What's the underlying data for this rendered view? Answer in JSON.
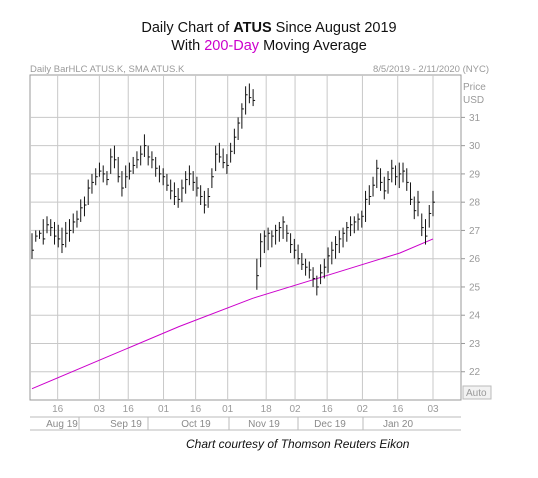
{
  "header": {
    "title_prefix": "Daily Chart of ",
    "ticker": "ATUS",
    "title_suffix": " Since August 2019",
    "subtitle_prefix": "With ",
    "subtitle_highlight": "200-Day",
    "subtitle_suffix": " Moving Average",
    "chart_spec": "Daily BarHLC ATUS.K, SMA ATUS.K",
    "date_range": "8/5/2019 - 2/11/2020 (NYC)",
    "credit": "Chart courtesy of Thomson Reuters Eikon"
  },
  "colors": {
    "sma": "#cc00cc",
    "bars": "#111111",
    "grid": "#c8c8c8",
    "axis_text": "#9a9a9a"
  },
  "chart_data": {
    "type": "line",
    "series": [
      {
        "kind": "ohlc-bars",
        "bars": [
          [
            26.0,
            26.9,
            26.3
          ],
          [
            26.6,
            27.0,
            26.8
          ],
          [
            26.7,
            27.0,
            26.9
          ],
          [
            26.5,
            27.4,
            26.7
          ],
          [
            26.9,
            27.5,
            27.2
          ],
          [
            26.8,
            27.4,
            27.1
          ],
          [
            26.5,
            27.3,
            26.8
          ],
          [
            26.4,
            27.2,
            26.7
          ],
          [
            26.2,
            27.1,
            26.5
          ],
          [
            26.4,
            27.3,
            26.9
          ],
          [
            26.6,
            27.4,
            27.0
          ],
          [
            26.9,
            27.6,
            27.3
          ],
          [
            27.1,
            27.7,
            27.4
          ],
          [
            27.3,
            28.1,
            27.8
          ],
          [
            27.5,
            28.2,
            27.9
          ],
          [
            27.9,
            28.8,
            28.5
          ],
          [
            28.3,
            29.0,
            28.7
          ],
          [
            28.6,
            29.2,
            28.9
          ],
          [
            28.9,
            29.4,
            29.1
          ],
          [
            28.7,
            29.3,
            29.0
          ],
          [
            28.6,
            29.1,
            28.8
          ],
          [
            29.0,
            29.9,
            29.6
          ],
          [
            29.2,
            30.0,
            29.5
          ],
          [
            28.7,
            29.6,
            28.9
          ],
          [
            28.2,
            29.1,
            28.5
          ],
          [
            28.5,
            29.3,
            28.9
          ],
          [
            28.8,
            29.4,
            29.1
          ],
          [
            29.0,
            29.6,
            29.3
          ],
          [
            29.2,
            29.8,
            29.5
          ],
          [
            29.3,
            30.0,
            29.7
          ],
          [
            29.6,
            30.4,
            30.0
          ],
          [
            29.3,
            30.0,
            29.6
          ],
          [
            29.2,
            29.8,
            29.5
          ],
          [
            28.9,
            29.6,
            29.2
          ],
          [
            28.7,
            29.3,
            29.0
          ],
          [
            28.6,
            29.2,
            28.9
          ],
          [
            28.4,
            29.0,
            28.6
          ],
          [
            28.1,
            28.8,
            28.4
          ],
          [
            27.9,
            28.7,
            28.2
          ],
          [
            27.8,
            28.5,
            28.1
          ],
          [
            28.0,
            28.8,
            28.5
          ],
          [
            28.3,
            29.1,
            28.8
          ],
          [
            28.6,
            29.3,
            29.0
          ],
          [
            28.4,
            29.1,
            28.7
          ],
          [
            28.2,
            28.9,
            28.5
          ],
          [
            27.9,
            28.6,
            28.2
          ],
          [
            27.6,
            28.4,
            27.9
          ],
          [
            27.8,
            28.5,
            28.2
          ],
          [
            28.5,
            29.2,
            28.9
          ],
          [
            29.1,
            30.0,
            29.7
          ],
          [
            29.4,
            30.1,
            29.6
          ],
          [
            29.2,
            29.9,
            29.4
          ],
          [
            29.0,
            29.7,
            29.3
          ],
          [
            29.4,
            30.1,
            29.8
          ],
          [
            29.7,
            30.6,
            30.3
          ],
          [
            30.2,
            31.0,
            30.8
          ],
          [
            30.6,
            31.5,
            31.3
          ],
          [
            31.1,
            32.1,
            31.8
          ],
          [
            31.5,
            32.2,
            31.7
          ],
          [
            31.4,
            32.0,
            31.6
          ],
          [
            24.9,
            26.0,
            25.4
          ],
          [
            25.7,
            26.9,
            26.6
          ],
          [
            26.2,
            27.0,
            26.8
          ],
          [
            26.3,
            27.1,
            26.9
          ],
          [
            26.4,
            27.0,
            26.8
          ],
          [
            26.5,
            27.2,
            27.0
          ],
          [
            26.6,
            27.3,
            27.1
          ],
          [
            26.7,
            27.5,
            27.3
          ],
          [
            26.6,
            27.2,
            26.9
          ],
          [
            26.2,
            26.9,
            26.5
          ],
          [
            26.0,
            26.7,
            26.3
          ],
          [
            25.8,
            26.5,
            26.0
          ],
          [
            25.6,
            26.2,
            25.8
          ],
          [
            25.4,
            26.0,
            25.7
          ],
          [
            25.3,
            25.9,
            25.6
          ],
          [
            25.0,
            25.7,
            25.3
          ],
          [
            24.7,
            25.4,
            25.0
          ],
          [
            25.1,
            25.8,
            25.5
          ],
          [
            25.3,
            26.0,
            25.7
          ],
          [
            25.5,
            26.4,
            26.1
          ],
          [
            25.8,
            26.6,
            26.3
          ],
          [
            26.0,
            26.8,
            26.5
          ],
          [
            26.2,
            27.0,
            26.7
          ],
          [
            26.4,
            27.1,
            26.9
          ],
          [
            26.6,
            27.3,
            27.1
          ],
          [
            26.8,
            27.5,
            27.2
          ],
          [
            26.9,
            27.5,
            27.3
          ],
          [
            27.0,
            27.6,
            27.4
          ],
          [
            27.1,
            27.7,
            27.5
          ],
          [
            27.3,
            28.4,
            28.1
          ],
          [
            27.9,
            28.6,
            28.2
          ],
          [
            28.2,
            28.9,
            28.6
          ],
          [
            28.5,
            29.5,
            29.2
          ],
          [
            28.4,
            29.2,
            28.7
          ],
          [
            28.1,
            28.9,
            28.4
          ],
          [
            28.3,
            29.1,
            28.8
          ],
          [
            28.7,
            29.5,
            29.2
          ],
          [
            28.6,
            29.3,
            28.9
          ],
          [
            28.5,
            29.4,
            29.0
          ],
          [
            28.7,
            29.4,
            29.1
          ],
          [
            28.4,
            29.2,
            28.7
          ],
          [
            27.9,
            28.7,
            28.1
          ],
          [
            27.4,
            28.2,
            27.7
          ],
          [
            27.5,
            28.4,
            28.0
          ],
          [
            26.8,
            27.6,
            27.1
          ],
          [
            26.5,
            27.4,
            26.8
          ],
          [
            27.1,
            27.9,
            27.6
          ],
          [
            27.5,
            28.4,
            28.0
          ]
        ]
      },
      {
        "kind": "sma",
        "name": "200-Day",
        "x": [
          0,
          20,
          40,
          60,
          80,
          100,
          109
        ],
        "values": [
          21.4,
          22.5,
          23.6,
          24.6,
          25.4,
          26.2,
          26.7
        ]
      }
    ],
    "yaxis": {
      "label": "Price\nUSD",
      "ticks": [
        22,
        23,
        24,
        25,
        26,
        27,
        28,
        29,
        30,
        31
      ],
      "ylim": [
        21.0,
        32.5
      ],
      "auto_label": "Auto"
    },
    "xaxis": {
      "tick_labels": [
        [
          "16",
          8
        ],
        [
          "03",
          21
        ],
        [
          "16",
          30
        ],
        [
          "01",
          41
        ],
        [
          "16",
          51
        ],
        [
          "01",
          61
        ],
        [
          "18",
          73
        ],
        [
          "02",
          82
        ],
        [
          "16",
          92
        ],
        [
          "02",
          103
        ],
        [
          "16",
          114
        ],
        [
          "03",
          125
        ]
      ],
      "month_labels": [
        "Aug 19",
        "Sep 19",
        "Oct 19",
        "Nov 19",
        "Dec 19",
        "Jan 20"
      ]
    },
    "grid": true
  }
}
